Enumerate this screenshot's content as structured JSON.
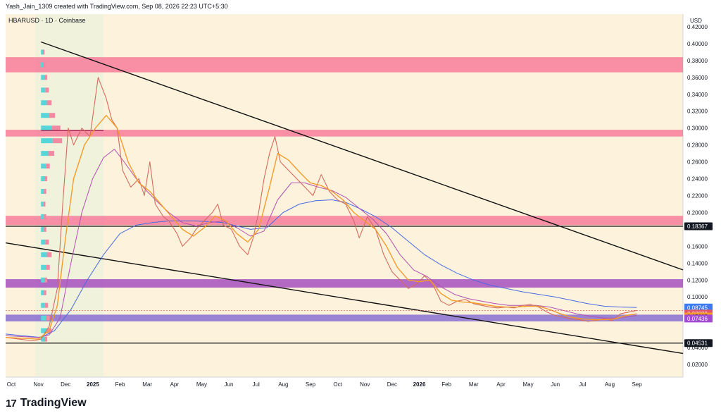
{
  "header": {
    "attribution": "Yash_Jain_1309 created with TradingView.com, Sep 08, 2026 22:23 UTC+5:30"
  },
  "footer": {
    "brand": "TradingView",
    "brand_mark": "17"
  },
  "chart_data": {
    "type": "line",
    "symbol_line": "HBARUSD · 1D · Coinbase",
    "currency": "USD",
    "y_ticks": [
      0.42,
      0.4,
      0.38,
      0.36,
      0.34,
      0.32,
      0.3,
      0.28,
      0.26,
      0.24,
      0.22,
      0.2,
      0.16,
      0.14,
      0.12,
      0.1,
      0.04,
      0.02
    ],
    "y_tick_labels": [
      "0.42000",
      "0.40000",
      "0.38000",
      "0.36000",
      "0.34000",
      "0.32000",
      "0.30000",
      "0.28000",
      "0.26000",
      "0.24000",
      "0.22000",
      "0.20000",
      "0.16000",
      "0.14000",
      "0.12000",
      "0.10000",
      "0.04000",
      "0.02000"
    ],
    "ylim": [
      0.005,
      0.435
    ],
    "x_labels": [
      {
        "label": "Oct",
        "m": 0
      },
      {
        "label": "Nov",
        "m": 1
      },
      {
        "label": "Dec",
        "m": 2
      },
      {
        "label": "2025",
        "m": 3,
        "bold": true
      },
      {
        "label": "Feb",
        "m": 4
      },
      {
        "label": "Mar",
        "m": 5
      },
      {
        "label": "Apr",
        "m": 6
      },
      {
        "label": "May",
        "m": 7
      },
      {
        "label": "Jun",
        "m": 8
      },
      {
        "label": "Jul",
        "m": 9
      },
      {
        "label": "Aug",
        "m": 10
      },
      {
        "label": "Sep",
        "m": 11
      },
      {
        "label": "Oct",
        "m": 12
      },
      {
        "label": "Nov",
        "m": 13
      },
      {
        "label": "Dec",
        "m": 14
      },
      {
        "label": "2026",
        "m": 15,
        "bold": true
      },
      {
        "label": "Feb",
        "m": 16
      },
      {
        "label": "Mar",
        "m": 17
      },
      {
        "label": "Apr",
        "m": 18
      },
      {
        "label": "May",
        "m": 19
      },
      {
        "label": "Jun",
        "m": 20
      },
      {
        "label": "Jul",
        "m": 21
      },
      {
        "label": "Aug",
        "m": 22
      },
      {
        "label": "Sep",
        "m": 23
      }
    ],
    "xlim": [
      0,
      24.9
    ],
    "zones": [
      {
        "y1": 0.366,
        "y2": 0.384,
        "color": "#f77c9b"
      },
      {
        "y1": 0.29,
        "y2": 0.298,
        "color": "#f77c9b"
      },
      {
        "y1": 0.185,
        "y2": 0.196,
        "color": "#f77c9b"
      },
      {
        "y1": 0.111,
        "y2": 0.121,
        "color": "#a64fc0"
      },
      {
        "y1": 0.071,
        "y2": 0.079,
        "color": "#8a6fd1"
      }
    ],
    "h_lines": [
      0.18367,
      0.04531
    ],
    "trendlines": [
      {
        "x1": 1.3,
        "y1": 0.402,
        "x2": 24.9,
        "y2": 0.132
      },
      {
        "x1": 0.0,
        "y1": 0.164,
        "x2": 24.9,
        "y2": 0.033
      }
    ],
    "price": [
      [
        0,
        0.052
      ],
      [
        0.5,
        0.05
      ],
      [
        1.0,
        0.048
      ],
      [
        1.3,
        0.05
      ],
      [
        1.6,
        0.065
      ],
      [
        1.9,
        0.11
      ],
      [
        2.1,
        0.21
      ],
      [
        2.3,
        0.3
      ],
      [
        2.5,
        0.28
      ],
      [
        2.8,
        0.3
      ],
      [
        3.1,
        0.29
      ],
      [
        3.4,
        0.36
      ],
      [
        3.7,
        0.335
      ],
      [
        3.9,
        0.31
      ],
      [
        4.1,
        0.3
      ],
      [
        4.3,
        0.25
      ],
      [
        4.6,
        0.23
      ],
      [
        4.9,
        0.24
      ],
      [
        5.1,
        0.22
      ],
      [
        5.3,
        0.26
      ],
      [
        5.5,
        0.21
      ],
      [
        5.8,
        0.195
      ],
      [
        6.0,
        0.19
      ],
      [
        6.3,
        0.175
      ],
      [
        6.5,
        0.16
      ],
      [
        6.8,
        0.17
      ],
      [
        7.0,
        0.18
      ],
      [
        7.3,
        0.19
      ],
      [
        7.6,
        0.2
      ],
      [
        7.8,
        0.21
      ],
      [
        8.0,
        0.185
      ],
      [
        8.3,
        0.18
      ],
      [
        8.6,
        0.16
      ],
      [
        8.9,
        0.15
      ],
      [
        9.1,
        0.17
      ],
      [
        9.3,
        0.2
      ],
      [
        9.5,
        0.24
      ],
      [
        9.7,
        0.27
      ],
      [
        9.9,
        0.29
      ],
      [
        10.1,
        0.26
      ],
      [
        10.4,
        0.25
      ],
      [
        10.7,
        0.24
      ],
      [
        11.0,
        0.23
      ],
      [
        11.3,
        0.22
      ],
      [
        11.6,
        0.245
      ],
      [
        11.9,
        0.225
      ],
      [
        12.2,
        0.215
      ],
      [
        12.5,
        0.21
      ],
      [
        12.8,
        0.19
      ],
      [
        13.0,
        0.17
      ],
      [
        13.3,
        0.195
      ],
      [
        13.6,
        0.18
      ],
      [
        13.9,
        0.15
      ],
      [
        14.2,
        0.13
      ],
      [
        14.5,
        0.12
      ],
      [
        14.8,
        0.11
      ],
      [
        15.1,
        0.115
      ],
      [
        15.4,
        0.125
      ],
      [
        15.7,
        0.115
      ],
      [
        16.0,
        0.095
      ],
      [
        16.3,
        0.09
      ],
      [
        16.6,
        0.095
      ],
      [
        16.9,
        0.097
      ],
      [
        17.2,
        0.092
      ],
      [
        17.5,
        0.09
      ],
      [
        17.8,
        0.088
      ],
      [
        18.1,
        0.087
      ],
      [
        18.4,
        0.088
      ],
      [
        18.7,
        0.087
      ],
      [
        19.0,
        0.09
      ],
      [
        19.3,
        0.091
      ],
      [
        19.6,
        0.088
      ],
      [
        19.9,
        0.082
      ],
      [
        20.2,
        0.078
      ],
      [
        20.5,
        0.076
      ],
      [
        20.8,
        0.074
      ],
      [
        21.1,
        0.073
      ],
      [
        21.4,
        0.071
      ],
      [
        21.7,
        0.072
      ],
      [
        22.0,
        0.074
      ],
      [
        22.3,
        0.072
      ],
      [
        22.6,
        0.08
      ],
      [
        22.9,
        0.082
      ],
      [
        23.2,
        0.084
      ]
    ],
    "ema_fast": [
      [
        0,
        0.052
      ],
      [
        1.2,
        0.05
      ],
      [
        1.6,
        0.06
      ],
      [
        1.9,
        0.09
      ],
      [
        2.2,
        0.17
      ],
      [
        2.5,
        0.24
      ],
      [
        2.9,
        0.28
      ],
      [
        3.3,
        0.3
      ],
      [
        3.7,
        0.315
      ],
      [
        4.1,
        0.3
      ],
      [
        4.5,
        0.26
      ],
      [
        4.9,
        0.235
      ],
      [
        5.3,
        0.225
      ],
      [
        5.7,
        0.21
      ],
      [
        6.1,
        0.195
      ],
      [
        6.5,
        0.18
      ],
      [
        6.9,
        0.172
      ],
      [
        7.3,
        0.182
      ],
      [
        7.7,
        0.196
      ],
      [
        8.1,
        0.19
      ],
      [
        8.5,
        0.175
      ],
      [
        8.9,
        0.165
      ],
      [
        9.3,
        0.18
      ],
      [
        9.7,
        0.23
      ],
      [
        10.0,
        0.27
      ],
      [
        10.4,
        0.262
      ],
      [
        10.8,
        0.248
      ],
      [
        11.2,
        0.235
      ],
      [
        11.6,
        0.232
      ],
      [
        12.0,
        0.225
      ],
      [
        12.4,
        0.215
      ],
      [
        12.8,
        0.2
      ],
      [
        13.2,
        0.19
      ],
      [
        13.6,
        0.18
      ],
      [
        14.0,
        0.16
      ],
      [
        14.4,
        0.135
      ],
      [
        14.8,
        0.12
      ],
      [
        15.2,
        0.118
      ],
      [
        15.6,
        0.12
      ],
      [
        16.0,
        0.104
      ],
      [
        16.4,
        0.096
      ],
      [
        16.8,
        0.094
      ],
      [
        17.2,
        0.093
      ],
      [
        17.6,
        0.091
      ],
      [
        18.0,
        0.089
      ],
      [
        18.4,
        0.088
      ],
      [
        18.8,
        0.088
      ],
      [
        19.2,
        0.089
      ],
      [
        19.6,
        0.089
      ],
      [
        20.0,
        0.085
      ],
      [
        20.4,
        0.08
      ],
      [
        20.8,
        0.076
      ],
      [
        21.2,
        0.074
      ],
      [
        21.6,
        0.073
      ],
      [
        22.0,
        0.073
      ],
      [
        22.4,
        0.074
      ],
      [
        22.8,
        0.078
      ],
      [
        23.2,
        0.08
      ]
    ],
    "ema_mid": [
      [
        0,
        0.054
      ],
      [
        1.2,
        0.052
      ],
      [
        1.6,
        0.055
      ],
      [
        2.0,
        0.075
      ],
      [
        2.4,
        0.14
      ],
      [
        2.8,
        0.2
      ],
      [
        3.2,
        0.24
      ],
      [
        3.6,
        0.265
      ],
      [
        4.0,
        0.275
      ],
      [
        4.4,
        0.258
      ],
      [
        4.8,
        0.24
      ],
      [
        5.2,
        0.225
      ],
      [
        5.6,
        0.212
      ],
      [
        6.0,
        0.2
      ],
      [
        6.5,
        0.188
      ],
      [
        7.0,
        0.184
      ],
      [
        7.5,
        0.188
      ],
      [
        8.0,
        0.19
      ],
      [
        8.5,
        0.182
      ],
      [
        9.0,
        0.172
      ],
      [
        9.5,
        0.178
      ],
      [
        10.0,
        0.215
      ],
      [
        10.5,
        0.235
      ],
      [
        11.0,
        0.235
      ],
      [
        11.5,
        0.23
      ],
      [
        12.0,
        0.226
      ],
      [
        12.5,
        0.218
      ],
      [
        13.0,
        0.205
      ],
      [
        13.5,
        0.192
      ],
      [
        14.0,
        0.175
      ],
      [
        14.5,
        0.15
      ],
      [
        15.0,
        0.132
      ],
      [
        15.5,
        0.124
      ],
      [
        16.0,
        0.112
      ],
      [
        16.5,
        0.103
      ],
      [
        17.0,
        0.098
      ],
      [
        17.5,
        0.095
      ],
      [
        18.0,
        0.092
      ],
      [
        18.5,
        0.09
      ],
      [
        19.0,
        0.09
      ],
      [
        19.5,
        0.09
      ],
      [
        20.0,
        0.088
      ],
      [
        20.5,
        0.084
      ],
      [
        21.0,
        0.08
      ],
      [
        21.5,
        0.077
      ],
      [
        22.0,
        0.075
      ],
      [
        22.5,
        0.075
      ],
      [
        23.2,
        0.078
      ]
    ],
    "ema_slow": [
      [
        0,
        0.056
      ],
      [
        1.3,
        0.052
      ],
      [
        1.8,
        0.06
      ],
      [
        2.4,
        0.085
      ],
      [
        3.0,
        0.12
      ],
      [
        3.6,
        0.15
      ],
      [
        4.2,
        0.175
      ],
      [
        4.8,
        0.185
      ],
      [
        5.4,
        0.188
      ],
      [
        6.0,
        0.19
      ],
      [
        7.0,
        0.19
      ],
      [
        8.0,
        0.188
      ],
      [
        9.0,
        0.18
      ],
      [
        9.6,
        0.182
      ],
      [
        10.2,
        0.2
      ],
      [
        10.8,
        0.21
      ],
      [
        11.4,
        0.214
      ],
      [
        12.0,
        0.215
      ],
      [
        12.5,
        0.212
      ],
      [
        13.0,
        0.205
      ],
      [
        13.6,
        0.195
      ],
      [
        14.2,
        0.182
      ],
      [
        14.8,
        0.166
      ],
      [
        15.4,
        0.15
      ],
      [
        16.0,
        0.138
      ],
      [
        16.6,
        0.128
      ],
      [
        17.2,
        0.12
      ],
      [
        17.8,
        0.114
      ],
      [
        18.4,
        0.11
      ],
      [
        19.0,
        0.106
      ],
      [
        19.6,
        0.103
      ],
      [
        20.2,
        0.1
      ],
      [
        20.8,
        0.096
      ],
      [
        21.4,
        0.092
      ],
      [
        22.0,
        0.089
      ],
      [
        22.6,
        0.088
      ],
      [
        23.2,
        0.0875
      ]
    ],
    "volume_profile": [
      {
        "y": 0.39,
        "len": 4
      },
      {
        "y": 0.375,
        "len": 5
      },
      {
        "y": 0.36,
        "len": 7
      },
      {
        "y": 0.345,
        "len": 9
      },
      {
        "y": 0.33,
        "len": 12
      },
      {
        "y": 0.315,
        "len": 16
      },
      {
        "y": 0.3,
        "len": 22
      },
      {
        "y": 0.285,
        "len": 24
      },
      {
        "y": 0.27,
        "len": 15
      },
      {
        "y": 0.255,
        "len": 10
      },
      {
        "y": 0.24,
        "len": 7
      },
      {
        "y": 0.225,
        "len": 6
      },
      {
        "y": 0.21,
        "len": 5
      },
      {
        "y": 0.195,
        "len": 6
      },
      {
        "y": 0.18,
        "len": 6
      },
      {
        "y": 0.165,
        "len": 9
      },
      {
        "y": 0.15,
        "len": 12
      },
      {
        "y": 0.135,
        "len": 10
      },
      {
        "y": 0.12,
        "len": 7
      },
      {
        "y": 0.105,
        "len": 6
      },
      {
        "y": 0.09,
        "len": 8
      },
      {
        "y": 0.075,
        "len": 10
      },
      {
        "y": 0.06,
        "len": 12
      },
      {
        "y": 0.05,
        "len": 7
      }
    ],
    "poc_price": 0.297,
    "price_badges": [
      {
        "label": "0.18367",
        "value": 0.18367,
        "bg": "#131722",
        "fg": "#ffffff"
      },
      {
        "label": "0.08745",
        "value": 0.08745,
        "bg": "#3d7bf5",
        "fg": "#ffffff"
      },
      {
        "label": "0.08029",
        "value": 0.08029,
        "bg": "#e2536b",
        "fg": "#ffffff"
      },
      {
        "label": "0.07685",
        "value": 0.07685,
        "bg": "#f59a23",
        "fg": "#131722"
      },
      {
        "label": "0.07436",
        "value": 0.07436,
        "bg": "#a04bd1",
        "fg": "#ffffff"
      },
      {
        "label": "0.04531",
        "value": 0.04531,
        "bg": "#131722",
        "fg": "#ffffff"
      }
    ],
    "colors": {
      "background": "#fdf3dc",
      "highlight": "#eef2dc",
      "price": "#d46a5e",
      "ema_fast": "#f39c2a",
      "ema_mid": "#b34fb0",
      "ema_slow": "#4a69e2",
      "trend": "#111111",
      "profile_up": "#55d6d9",
      "profile_down": "#f08aa3"
    }
  }
}
